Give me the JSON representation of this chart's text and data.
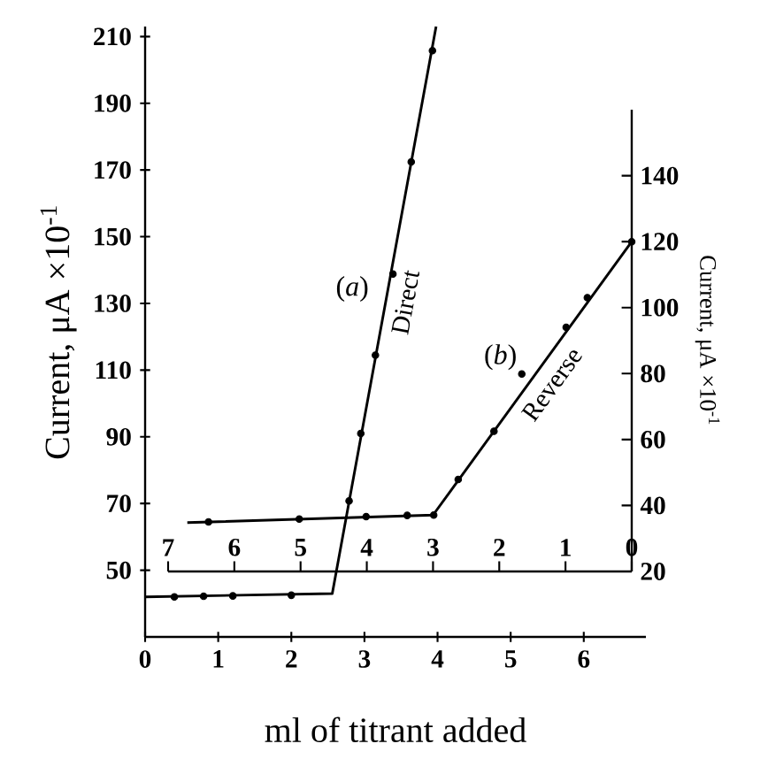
{
  "chart_data": [
    {
      "type": "line",
      "xlabel": "ml of titrant added",
      "ylabel": "Current, μA ×10$^{-1}$",
      "xlim": [
        0,
        6.85
      ],
      "ylim": [
        30,
        213
      ],
      "xticks": [
        0,
        1,
        2,
        3,
        4,
        5,
        6
      ],
      "yticks": [
        50,
        70,
        90,
        110,
        130,
        150,
        170,
        190,
        210
      ],
      "marker": "circle",
      "series": [
        {
          "name": "Direct",
          "marker": "none",
          "color": "#000000",
          "x": [
            0,
            2.56,
            3.98
          ],
          "values": [
            42,
            43,
            213
          ]
        },
        {
          "type": "scatter",
          "color": "#000000",
          "x": [
            0.4,
            0.8,
            1.2,
            2.0,
            2.79,
            2.95,
            3.15,
            3.39,
            3.64,
            3.93
          ],
          "values": [
            42,
            42.2,
            42.3,
            42.5,
            70.8,
            91,
            114.5,
            138.8,
            172.4,
            205.8
          ]
        }
      ],
      "annotations": [
        "(*a*)"
      ]
    },
    {
      "type": "line",
      "ylabel": "Current, μA ×10$^{-1}$",
      "xlim": [
        7,
        0
      ],
      "ylim": [
        20,
        160
      ],
      "xticks": [
        0,
        1,
        2,
        3,
        4,
        5,
        6,
        7
      ],
      "yticks": [
        20,
        40,
        60,
        80,
        100,
        120,
        140
      ],
      "marker": "circle",
      "series": [
        {
          "name": "Reverse",
          "marker": "none",
          "color": "#000000",
          "x": [
            6.71,
            3.0,
            0
          ],
          "values": [
            34.8,
            37.1,
            120
          ]
        },
        {
          "type": "scatter",
          "color": "#000000",
          "x": [
            6.39,
            5.02,
            4.01,
            3.39,
            2.99,
            2.62,
            2.08,
            1.66,
            0.99,
            0.67,
            0
          ],
          "values": [
            35,
            35.9,
            36.6,
            37,
            37.1,
            47.9,
            62.5,
            79.9,
            94,
            103,
            120
          ]
        }
      ],
      "annotations": [
        "(*b*)"
      ]
    }
  ]
}
